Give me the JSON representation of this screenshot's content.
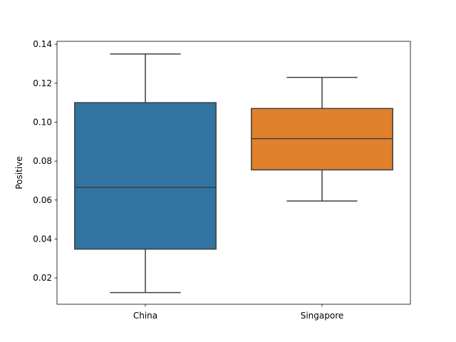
{
  "chart_data": {
    "type": "box",
    "title": "",
    "xlabel": "",
    "ylabel": "Positive",
    "ylim": [
      0.0065,
      0.1415
    ],
    "yticks": [
      0.02,
      0.04,
      0.06,
      0.08,
      0.1,
      0.12,
      0.14
    ],
    "ytick_labels": [
      "0.02",
      "0.04",
      "0.06",
      "0.08",
      "0.10",
      "0.12",
      "0.14"
    ],
    "categories": [
      "China",
      "Singapore"
    ],
    "boxes": [
      {
        "category": "China",
        "min": 0.0125,
        "q1": 0.0348,
        "median": 0.0665,
        "q3": 0.11,
        "max": 0.135,
        "color": "#3274a1"
      },
      {
        "category": "Singapore",
        "min": 0.0595,
        "q1": 0.0755,
        "median": 0.0915,
        "q3": 0.107,
        "max": 0.123,
        "color": "#e1812c"
      }
    ],
    "grid": false,
    "legend": "none",
    "line_color": "#3f3f3f"
  }
}
